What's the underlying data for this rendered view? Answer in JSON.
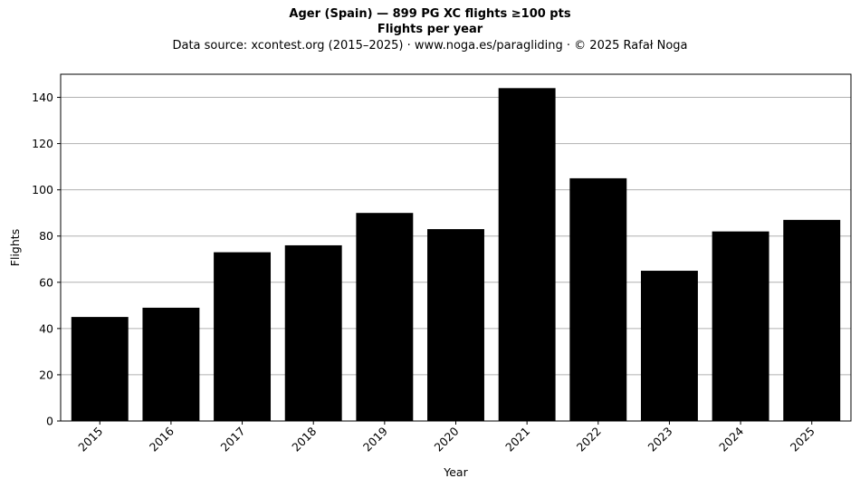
{
  "title": "Ager (Spain)  —  899 PG XC flights ≥100 pts",
  "subtitle": "Flights per year",
  "source_note": "Data source: xcontest.org (2015–2025)  ·  www.noga.es/paragliding  ·  © 2025 Rafał Noga",
  "chart_data": {
    "type": "bar",
    "categories": [
      "2015",
      "2016",
      "2017",
      "2018",
      "2019",
      "2020",
      "2021",
      "2022",
      "2023",
      "2024",
      "2025"
    ],
    "values": [
      45,
      49,
      73,
      76,
      90,
      83,
      144,
      105,
      65,
      82,
      87
    ],
    "xlabel": "Year",
    "ylabel": "Flights",
    "ylim": [
      0,
      150
    ],
    "yticks": [
      0,
      20,
      40,
      60,
      80,
      100,
      120,
      140
    ],
    "grid": "horizontal",
    "bar_color": "#000000",
    "grid_color": "#b0b0b0"
  }
}
